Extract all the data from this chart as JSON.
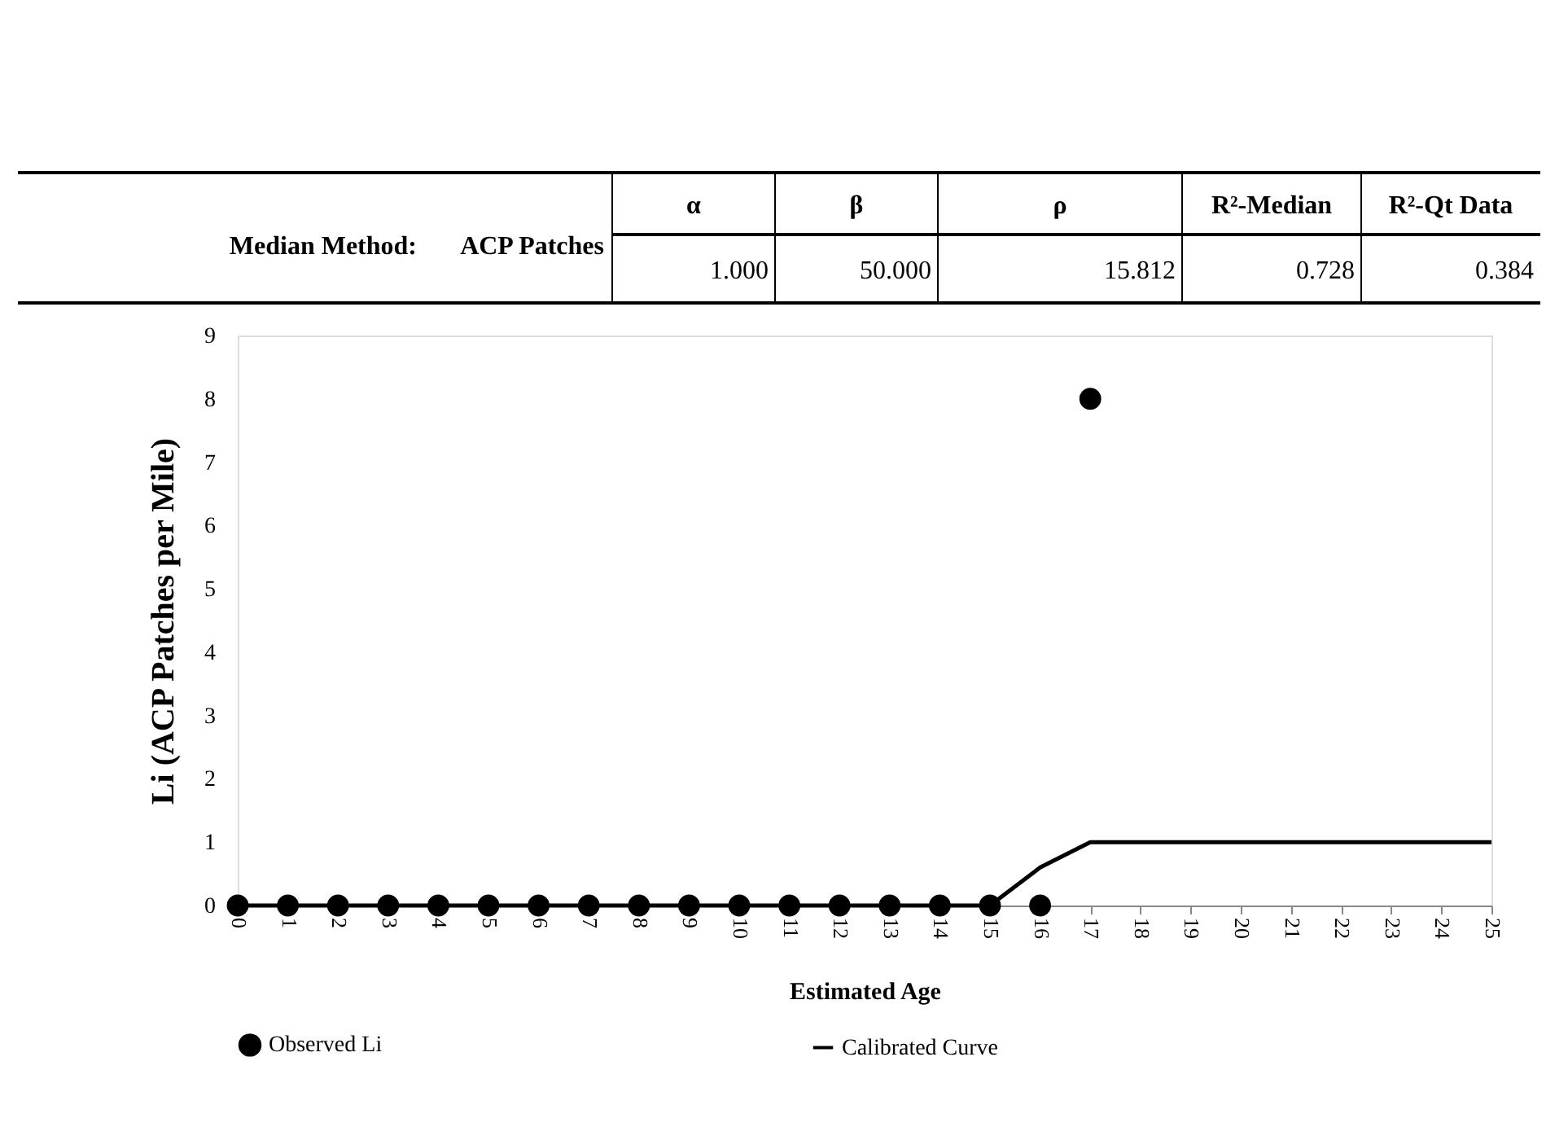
{
  "chart_data": {
    "type": "scatter",
    "xlabel": "Estimated Age",
    "ylabel": "Li (ACP Patches per Mile)",
    "annotations": [
      "Median Method:",
      "ACP Patches",
      "α",
      "β",
      "ρ",
      "R²-Median",
      "R²-Qt Data",
      "1.000",
      "50.000",
      "15.812",
      "0.728",
      "0.384"
    ],
    "xlim": [
      0,
      25
    ],
    "xticks": [
      0,
      1,
      2,
      3,
      4,
      5,
      6,
      7,
      8,
      9,
      10,
      11,
      12,
      13,
      14,
      15,
      16,
      17,
      18,
      19,
      20,
      21,
      22,
      23,
      24,
      25
    ],
    "ylim": [
      0,
      9
    ],
    "yticks": [
      0,
      1,
      2,
      3,
      4,
      5,
      6,
      7,
      8,
      9
    ],
    "grid": false,
    "legend": "bottom",
    "series": [
      {
        "name": "Observed Li",
        "marker": "circle",
        "color": "#000000",
        "x": [
          0,
          1,
          2,
          3,
          4,
          5,
          6,
          7,
          8,
          9,
          10,
          11,
          12,
          13,
          14,
          15,
          16,
          17
        ],
        "values": [
          0,
          0,
          0,
          0,
          0,
          0,
          0,
          0,
          0,
          0,
          0,
          0,
          0,
          0,
          0,
          0,
          0,
          8
        ]
      },
      {
        "name": "Calibrated Curve",
        "type": "line",
        "line_style": "solid",
        "color": "#000000",
        "x": [
          0,
          15,
          16,
          17,
          25
        ],
        "values": [
          0,
          0,
          0.6,
          1,
          1
        ]
      }
    ]
  }
}
